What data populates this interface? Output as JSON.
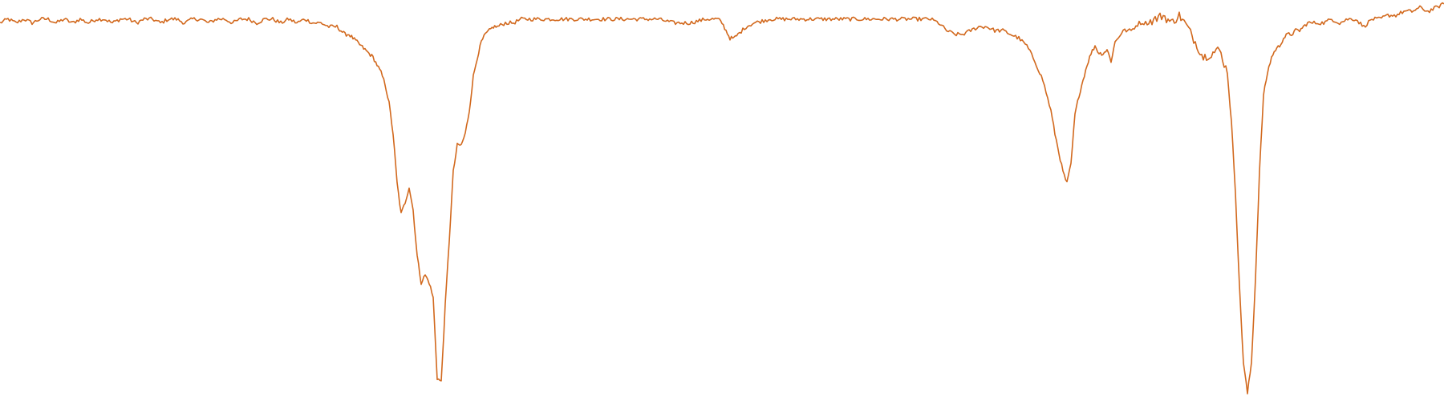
{
  "chart_data": {
    "type": "line",
    "title": "",
    "xlabel": "",
    "ylabel": "",
    "xlim": [
      0,
      1800
    ],
    "ylim": [
      0,
      1.05
    ],
    "grid": false,
    "legend": "none",
    "color": "#d2691e",
    "series": [
      {
        "x": [
          0,
          10,
          20,
          30,
          40,
          50,
          60,
          70,
          80,
          90,
          100,
          110,
          120,
          130,
          140,
          150,
          160,
          170,
          180,
          190,
          200,
          210,
          220,
          230,
          240,
          250,
          260,
          270,
          280,
          290,
          300,
          310,
          320,
          330,
          340,
          350,
          360,
          370,
          380,
          390,
          400,
          410,
          420,
          425,
          430,
          435,
          440,
          445,
          450,
          455,
          460,
          465,
          470,
          475,
          480,
          485,
          490,
          495,
          500,
          505,
          510,
          515,
          520,
          525,
          530,
          535,
          540,
          545,
          550,
          555,
          560,
          565,
          570,
          575,
          580,
          585,
          590,
          595,
          600,
          605,
          610,
          615,
          620,
          630,
          640,
          650,
          660,
          680,
          700,
          720,
          740,
          760,
          780,
          800,
          820,
          840,
          860,
          880,
          890,
          895,
          900,
          905,
          910,
          915,
          920,
          930,
          940,
          960,
          980,
          1000,
          1020,
          1040,
          1060,
          1080,
          1100,
          1120,
          1140,
          1160,
          1170,
          1180,
          1190,
          1200,
          1210,
          1220,
          1230,
          1240,
          1250,
          1260,
          1270,
          1280,
          1290,
          1300,
          1310,
          1315,
          1320,
          1325,
          1330,
          1335,
          1340,
          1345,
          1350,
          1355,
          1360,
          1365,
          1370,
          1375,
          1380,
          1385,
          1390,
          1400,
          1410,
          1420,
          1430,
          1440,
          1450,
          1460,
          1470,
          1480,
          1490,
          1500,
          1510,
          1520,
          1530,
          1535,
          1540,
          1545,
          1550,
          1555,
          1560,
          1565,
          1570,
          1575,
          1580,
          1585,
          1590,
          1595,
          1600,
          1605,
          1610,
          1615,
          1620,
          1625,
          1630,
          1640,
          1650,
          1660,
          1670,
          1680,
          1690,
          1700,
          1710,
          1720,
          1730,
          1740,
          1750,
          1760,
          1770,
          1780,
          1790,
          1800
        ],
        "y": [
          0.99,
          1.0,
          0.99,
          1.0,
          0.99,
          1.0,
          1.0,
          0.99,
          1.0,
          0.99,
          1.0,
          0.99,
          1.0,
          1.0,
          0.99,
          1.0,
          1.0,
          0.99,
          1.0,
          1.0,
          0.99,
          1.0,
          1.0,
          0.99,
          1.0,
          1.0,
          0.99,
          1.0,
          1.0,
          0.99,
          1.0,
          1.0,
          0.99,
          1.0,
          1.0,
          0.99,
          1.0,
          0.99,
          1.0,
          0.99,
          0.99,
          0.98,
          0.98,
          0.97,
          0.96,
          0.96,
          0.95,
          0.94,
          0.93,
          0.92,
          0.91,
          0.9,
          0.88,
          0.86,
          0.83,
          0.78,
          0.7,
          0.57,
          0.49,
          0.52,
          0.56,
          0.5,
          0.38,
          0.31,
          0.33,
          0.31,
          0.27,
          0.06,
          0.05,
          0.25,
          0.42,
          0.6,
          0.67,
          0.67,
          0.7,
          0.76,
          0.85,
          0.9,
          0.94,
          0.96,
          0.97,
          0.98,
          0.98,
          0.99,
          0.99,
          1.0,
          1.0,
          1.0,
          1.0,
          1.0,
          1.0,
          1.0,
          1.0,
          1.0,
          1.0,
          0.99,
          0.99,
          1.0,
          1.0,
          1.0,
          0.99,
          0.97,
          0.95,
          0.95,
          0.96,
          0.98,
          0.99,
          1.0,
          1.0,
          1.0,
          1.0,
          1.0,
          1.0,
          1.0,
          1.0,
          1.0,
          1.0,
          1.0,
          0.99,
          0.97,
          0.96,
          0.96,
          0.97,
          0.98,
          0.98,
          0.97,
          0.97,
          0.96,
          0.95,
          0.93,
          0.89,
          0.84,
          0.76,
          0.7,
          0.65,
          0.6,
          0.57,
          0.62,
          0.75,
          0.8,
          0.84,
          0.88,
          0.91,
          0.93,
          0.91,
          0.91,
          0.92,
          0.89,
          0.94,
          0.97,
          0.97,
          0.99,
          0.99,
          1.0,
          1.01,
          0.99,
          1.01,
          0.98,
          0.94,
          0.9,
          0.91,
          0.92,
          0.86,
          0.73,
          0.55,
          0.3,
          0.1,
          0.02,
          0.1,
          0.32,
          0.6,
          0.8,
          0.86,
          0.9,
          0.92,
          0.93,
          0.95,
          0.96,
          0.96,
          0.97,
          0.97,
          0.98,
          0.99,
          0.99,
          0.99,
          1.0,
          0.99,
          1.0,
          1.0,
          0.98,
          1.0,
          1.0,
          1.01,
          1.01,
          1.02,
          1.02,
          1.03,
          1.02,
          1.03,
          1.04
        ]
      }
    ]
  }
}
